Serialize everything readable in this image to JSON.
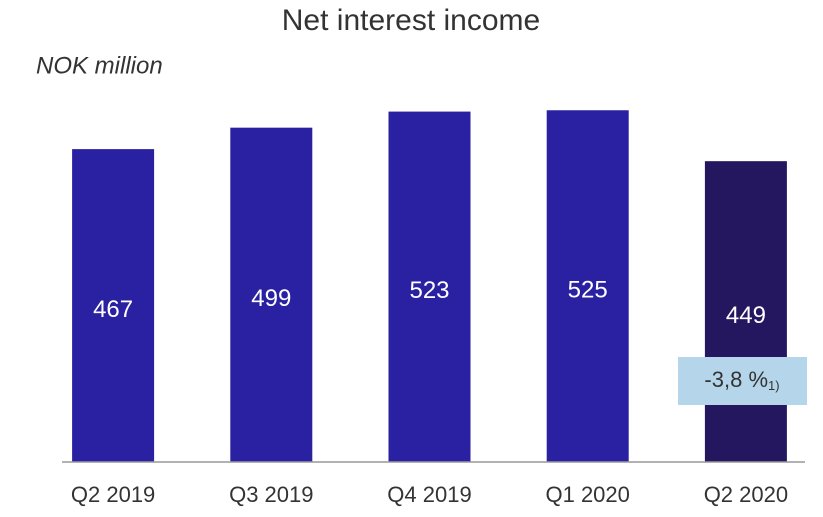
{
  "chart_data": {
    "type": "bar",
    "title": "Net interest income",
    "subtitle": "NOK million",
    "categories": [
      "Q2 2019",
      "Q3 2019",
      "Q4 2019",
      "Q1 2020",
      "Q2 2020"
    ],
    "values": [
      467,
      499,
      523,
      525,
      449
    ],
    "colors": [
      "#2a20a2",
      "#2a20a2",
      "#2a20a2",
      "#2a20a2",
      "#24175f"
    ],
    "ylim": [
      0,
      600
    ],
    "annotation": {
      "text": "-3,8 %",
      "note": "1)"
    }
  }
}
